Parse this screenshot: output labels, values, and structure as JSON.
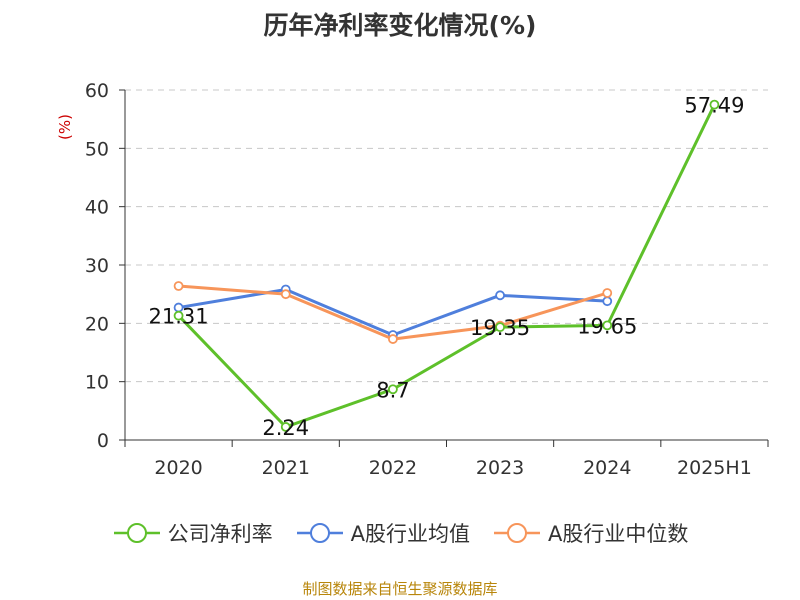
{
  "title": "历年净利率变化情况(%)",
  "source": "制图数据来自恒生聚源数据库",
  "colors": {
    "net_margin": "#5ec02a",
    "industry_avg": "#4f7fdc",
    "industry_median": "#f7955a",
    "grid": "#c8c8c8",
    "axis": "#333333"
  },
  "chart_data": {
    "type": "line",
    "title": "历年净利率变化情况(%)",
    "ylabel": "(%)",
    "xlabel": "",
    "categories": [
      "2020",
      "2021",
      "2022",
      "2023",
      "2024",
      "2025H1"
    ],
    "ylim": [
      0,
      60
    ],
    "yticks": [
      0,
      10,
      20,
      30,
      40,
      50,
      60
    ],
    "grid": true,
    "legend_position": "bottom",
    "series": [
      {
        "name": "公司净利率",
        "color_key": "net_margin",
        "values": [
          21.31,
          2.24,
          8.7,
          19.35,
          19.65,
          57.49
        ],
        "labels": [
          "21.31",
          "2.24",
          "8.7",
          "19.35",
          "19.65",
          "57.49"
        ]
      },
      {
        "name": "A股行业均值",
        "color_key": "industry_avg",
        "values": [
          22.7,
          25.8,
          18.0,
          24.8,
          23.8,
          null
        ]
      },
      {
        "name": "A股行业中位数",
        "color_key": "industry_median",
        "values": [
          26.4,
          25.0,
          17.3,
          19.6,
          25.2,
          null
        ]
      }
    ]
  }
}
